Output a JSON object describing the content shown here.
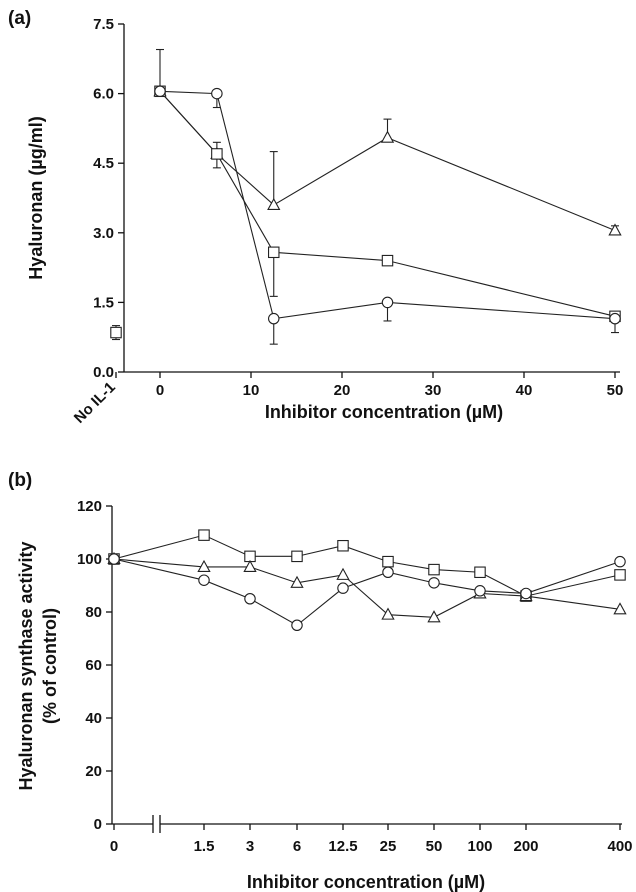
{
  "chart_data": [
    {
      "panel_label": "(a)",
      "type": "line",
      "xlabel": "Inhibitor concentration (µM)",
      "ylabel": "Hyaluronan (µg/ml)",
      "xlim": [
        -3,
        50
      ],
      "ylim": [
        0,
        7.5
      ],
      "x_ticks": [
        0,
        10,
        20,
        30,
        40,
        50
      ],
      "y_ticks": [
        "0.0",
        "1.5",
        "3.0",
        "4.5",
        "6.0",
        "7.5"
      ],
      "extra_category_label": "No IL-1",
      "no_il1_point": {
        "marker": "square",
        "value": 0.85,
        "error": 0.15
      },
      "grid": false,
      "series": [
        {
          "marker": "triangle",
          "x": [
            0,
            6.25,
            12.5,
            25,
            50
          ],
          "values": [
            6.05,
            4.7,
            3.6,
            5.05,
            3.05
          ],
          "errors": [
            0.9,
            0.25,
            1.15,
            0.4,
            0.1
          ]
        },
        {
          "marker": "square",
          "x": [
            0,
            6.25,
            12.5,
            25,
            50
          ],
          "values": [
            6.05,
            4.7,
            2.58,
            2.4,
            1.2
          ],
          "errors": [
            0.05,
            0.3,
            0.95,
            0.1,
            0.05
          ]
        },
        {
          "marker": "circle",
          "x": [
            0,
            6.25,
            12.5,
            25,
            50
          ],
          "values": [
            6.05,
            6.0,
            1.15,
            1.5,
            1.15
          ],
          "errors": [
            0.05,
            0.3,
            0.55,
            0.4,
            0.3
          ]
        }
      ]
    },
    {
      "panel_label": "(b)",
      "type": "line",
      "xlabel": "Inhibitor concentration (µM)",
      "ylabel_line1": "Hyaluronan synthase activity",
      "ylabel_line2": "(% of control)",
      "categories": [
        "0",
        "1.5",
        "3",
        "6",
        "12.5",
        "25",
        "50",
        "100",
        "200",
        "400"
      ],
      "ylim": [
        0,
        120
      ],
      "y_ticks": [
        "0",
        "20",
        "40",
        "60",
        "80",
        "100",
        "120"
      ],
      "axis_break_after": "0",
      "grid": false,
      "series": [
        {
          "marker": "square",
          "values": [
            100,
            109,
            101,
            101,
            105,
            99,
            96,
            95,
            86,
            94
          ]
        },
        {
          "marker": "triangle",
          "values": [
            100,
            97,
            97,
            91,
            94,
            79,
            78,
            87,
            86,
            81
          ]
        },
        {
          "marker": "circle",
          "values": [
            100,
            92,
            85,
            75,
            89,
            95,
            91,
            88,
            87,
            99
          ]
        }
      ]
    }
  ]
}
